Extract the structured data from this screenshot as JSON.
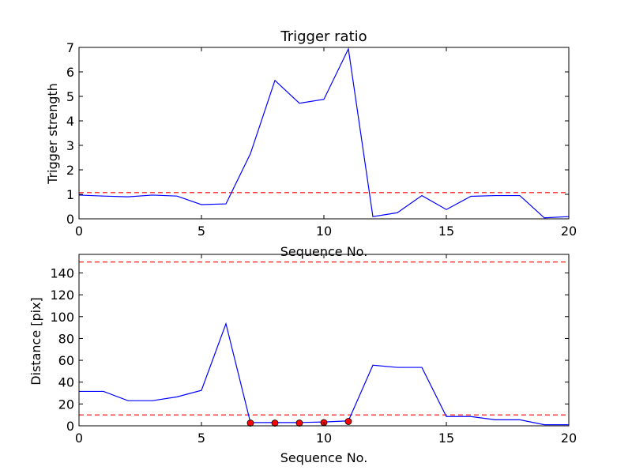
{
  "chart_data": [
    {
      "type": "line",
      "title": "Trigger ratio",
      "xlabel": "Sequence No.",
      "ylabel": "Trigger strength",
      "xlim": [
        0,
        20
      ],
      "ylim": [
        0,
        7
      ],
      "xticks": [
        0,
        5,
        10,
        15,
        20
      ],
      "yticks": [
        0,
        1,
        2,
        3,
        4,
        5,
        6,
        7
      ],
      "grid": false,
      "line_color": "#0000ff",
      "reference_color": "#ff0000",
      "series": [
        {
          "x": [
            0,
            1,
            2,
            3,
            4,
            5,
            6,
            7,
            8,
            9,
            10,
            11,
            12,
            13,
            14,
            15,
            16,
            17,
            18,
            19,
            20
          ],
          "values": [
            0.97,
            0.93,
            0.9,
            0.97,
            0.93,
            0.58,
            0.61,
            2.66,
            5.65,
            4.72,
            4.88,
            6.94,
            0.09,
            0.25,
            0.95,
            0.38,
            0.92,
            0.95,
            0.95,
            0.04,
            0.09
          ]
        }
      ],
      "hlines": [
        1.07
      ]
    },
    {
      "type": "line",
      "title": "",
      "xlabel": "Sequence No.",
      "ylabel": "Distance [pix]",
      "xlim": [
        0,
        20
      ],
      "ylim": [
        0,
        157
      ],
      "xticks": [
        0,
        5,
        10,
        15,
        20
      ],
      "yticks": [
        0,
        20,
        40,
        60,
        80,
        100,
        120,
        140
      ],
      "grid": false,
      "line_color": "#0000ff",
      "reference_color": "#ff0000",
      "marker_color": "#ff0000",
      "series": [
        {
          "x": [
            0,
            1,
            2,
            3,
            4,
            5,
            6,
            7,
            8,
            9,
            10,
            11,
            12,
            13,
            14,
            15,
            16,
            17,
            18,
            19,
            20
          ],
          "values": [
            31.5,
            31.5,
            23,
            23,
            26.5,
            32.5,
            93.5,
            3,
            3,
            3,
            3.5,
            4.5,
            55.5,
            53.5,
            53.5,
            8.5,
            8.5,
            5.5,
            5.5,
            1,
            1
          ]
        }
      ],
      "markers": {
        "x": [
          7,
          8,
          9,
          10,
          11
        ],
        "values": [
          2.5,
          2.5,
          2.5,
          3,
          4
        ]
      },
      "hlines": [
        150,
        10
      ]
    }
  ]
}
